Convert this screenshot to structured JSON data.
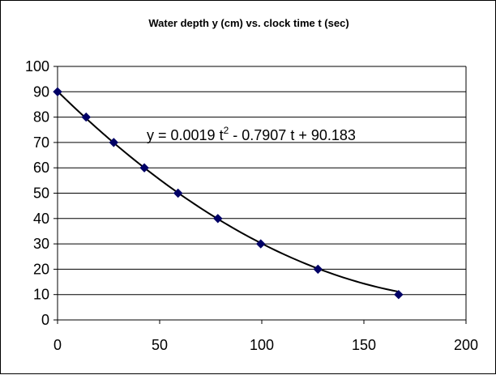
{
  "chart_data": {
    "type": "scatter",
    "title": "Water depth y (cm) vs. clock time t (sec)",
    "xlabel": "",
    "ylabel": "",
    "xlim": [
      0,
      200
    ],
    "ylim": [
      0,
      100
    ],
    "x_ticks": [
      0,
      50,
      100,
      150,
      200
    ],
    "y_ticks": [
      0,
      10,
      20,
      30,
      40,
      50,
      60,
      70,
      80,
      90,
      100
    ],
    "grid": "horizontal",
    "legend": "none",
    "series": [
      {
        "x": [
          0,
          14,
          27.5,
          42.5,
          59,
          78.5,
          99.5,
          127.5,
          167
        ],
        "y": [
          90,
          80,
          70,
          60,
          50,
          40,
          30,
          20,
          10
        ]
      }
    ],
    "trendline": {
      "type": "polynomial",
      "coefficients": [
        0.0019,
        -0.7907,
        90.183
      ],
      "x_range": [
        0,
        167
      ]
    },
    "annotation": {
      "prefix": "y = 0.0019 t",
      "superscript": "2",
      "suffix": " - 0.7907 t + 90.183"
    },
    "colors": {
      "marker": "#000066",
      "trendline": "#000000",
      "grid": "#000000",
      "axis": "#000000"
    }
  }
}
